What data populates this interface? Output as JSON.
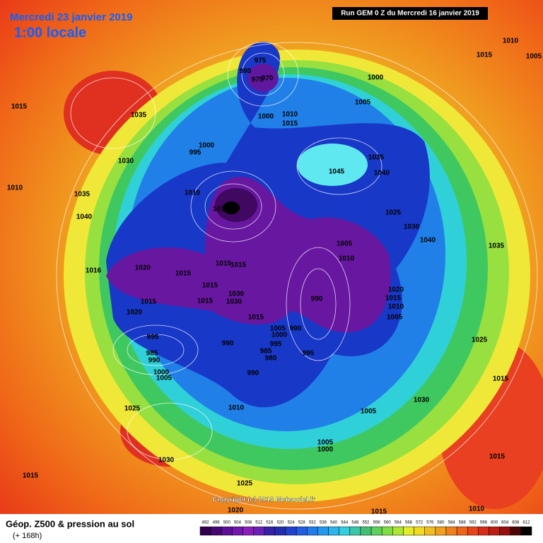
{
  "header": {
    "title": "Mercredi 23 janvier 2019",
    "time": "1:00 locale",
    "run": "Run GEM 0 Z du Mercredi 16 janvier 2019"
  },
  "copyright": "Copyright (c) 2019 Meteociel.fr",
  "legend": {
    "title": "Géop. Z500 & pression au sol",
    "lead": "(+ 168h)",
    "scale": [
      492,
      496,
      500,
      504,
      508,
      512,
      516,
      520,
      524,
      528,
      532,
      536,
      540,
      544,
      548,
      552,
      556,
      560,
      564,
      568,
      572,
      576,
      580,
      584,
      588,
      592,
      596,
      600,
      604,
      608,
      612
    ]
  },
  "isobar_labels": [
    "975",
    "980",
    "975",
    "970",
    "1000",
    "1005",
    "1015",
    "1010",
    "1005",
    "1015",
    "1035",
    "1000",
    "1010",
    "1015",
    "1000",
    "995",
    "1030",
    "1035",
    "1045",
    "1040",
    "1010",
    "1035",
    "1010",
    "1010",
    "1025",
    "1040",
    "1030",
    "1040",
    "1005",
    "1035",
    "1010",
    "1020",
    "1015",
    "1015",
    "1015",
    "1016",
    "1015",
    "1030",
    "1030",
    "1015",
    "1015",
    "990",
    "1020",
    "1015",
    "1010",
    "1020",
    "1015",
    "1005",
    "1005",
    "990",
    "1000",
    "995",
    "990",
    "995",
    "985",
    "980",
    "985",
    "990",
    "995",
    "1025",
    "1000",
    "1005",
    "990",
    "1015",
    "1030",
    "1010",
    "1025",
    "1005",
    "1005",
    "1000",
    "1030",
    "1015",
    "1015",
    "1025",
    "1020",
    "1015",
    "1010"
  ]
}
